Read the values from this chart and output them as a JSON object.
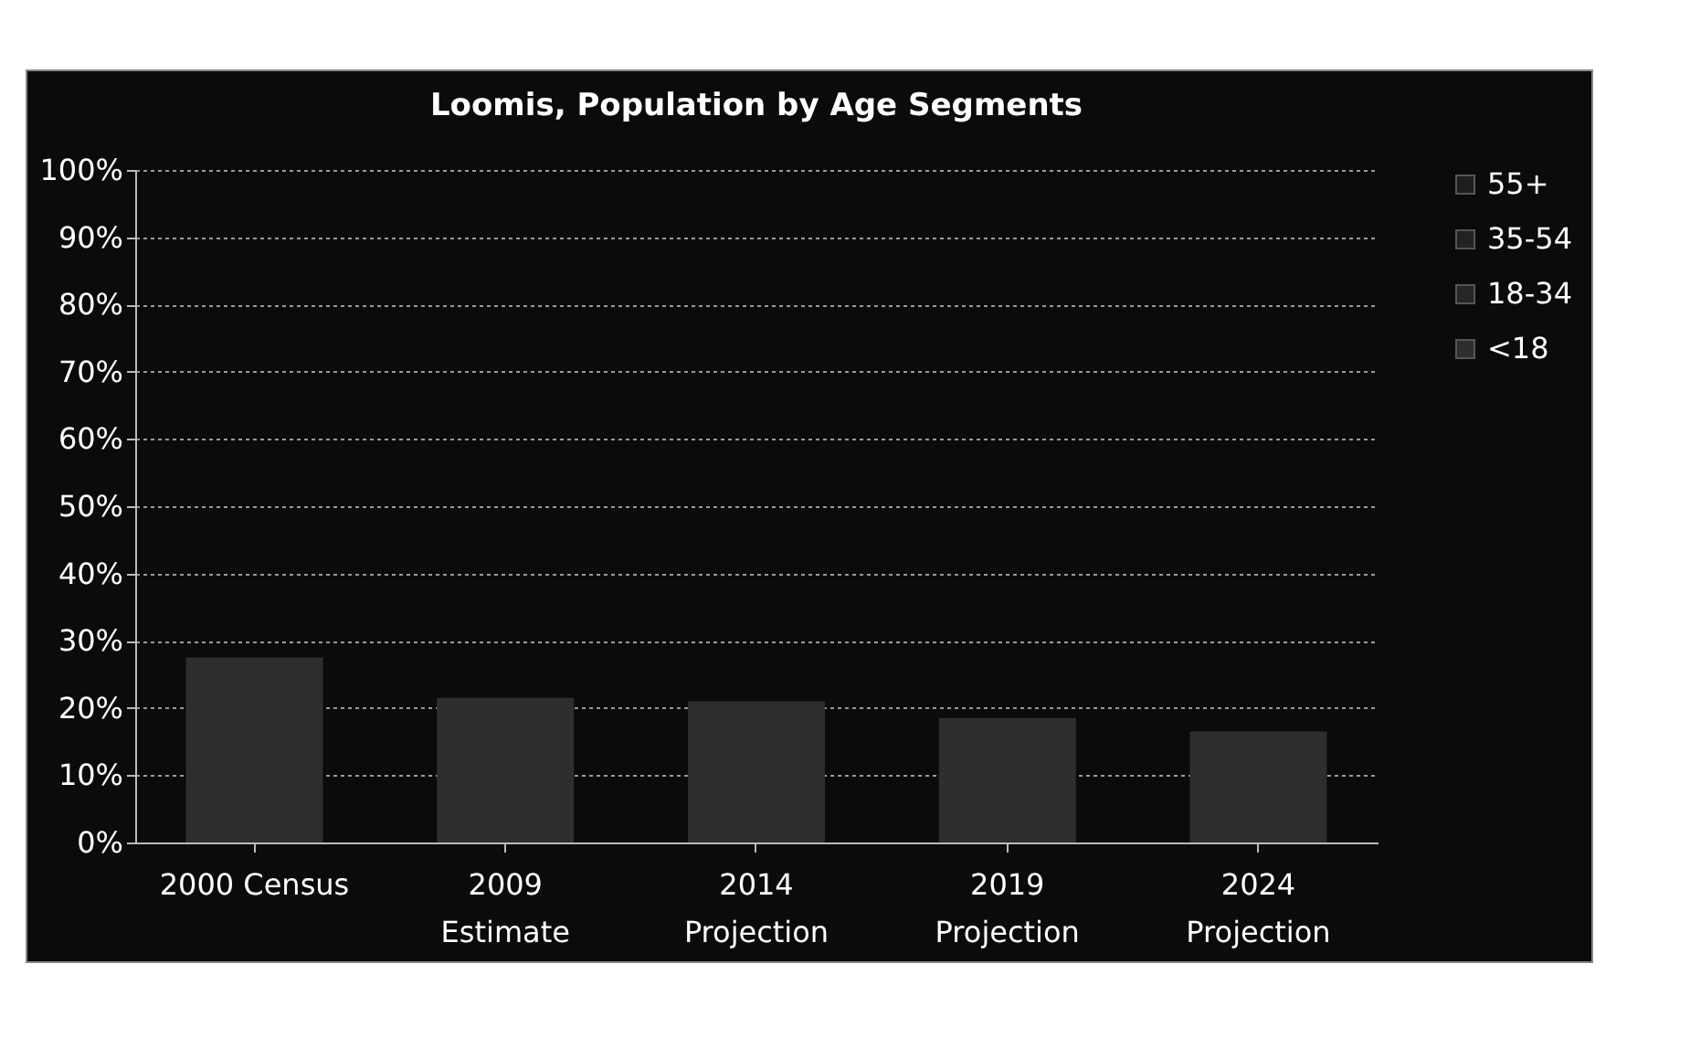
{
  "chart_data": {
    "type": "bar",
    "title": "Loomis, Population by Age Segments",
    "categories": [
      "2000 Census",
      "2009\nEstimate",
      "2014\nProjection",
      "2019\nProjection",
      "2024\nProjection"
    ],
    "series": [
      {
        "name": "<18",
        "color": "#2e2e2e",
        "values": [
          27.5,
          21.5,
          21,
          18.5,
          16.5
        ]
      },
      {
        "name": "18-34",
        "color": "#262626",
        "values": [
          null,
          null,
          null,
          null,
          null
        ]
      },
      {
        "name": "35-54",
        "color": "#222222",
        "values": [
          null,
          null,
          null,
          null,
          null
        ]
      },
      {
        "name": "55+",
        "color": "#1e1e1e",
        "values": [
          null,
          null,
          null,
          null,
          null
        ]
      }
    ],
    "ylim": [
      0,
      100
    ],
    "yticks": [
      {
        "value": 0,
        "label": "0%"
      },
      {
        "value": 10,
        "label": "10%"
      },
      {
        "value": 20,
        "label": "20%"
      },
      {
        "value": 30,
        "label": "30%"
      },
      {
        "value": 40,
        "label": "40%"
      },
      {
        "value": 50,
        "label": "50%"
      },
      {
        "value": 60,
        "label": "60%"
      },
      {
        "value": 70,
        "label": "70%"
      },
      {
        "value": 80,
        "label": "80%"
      },
      {
        "value": 90,
        "label": "90%"
      },
      {
        "value": 100,
        "label": "100%"
      }
    ],
    "grid": true,
    "legend": "right"
  }
}
